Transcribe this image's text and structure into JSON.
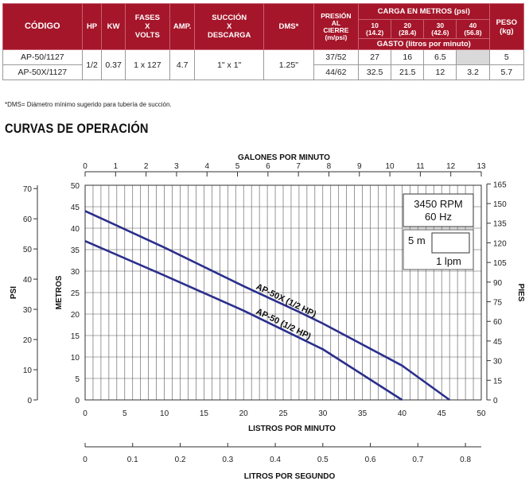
{
  "table": {
    "headers": {
      "codigo": "CÓDIGO",
      "hp": "HP",
      "kw": "KW",
      "fases": [
        "FASES",
        "X",
        "VOLTS"
      ],
      "amp": "AMP.",
      "succion": [
        "SUCCIÓN",
        "X",
        "DESCARGA"
      ],
      "dms": "DMS*",
      "presion": [
        "PRESIÓN",
        "AL",
        "CIERRE",
        "(m/psi)"
      ],
      "carga": "CARGA EN METROS (psi)",
      "carga_cols": [
        [
          "10",
          "(14.2)"
        ],
        [
          "20",
          "(28.4)"
        ],
        [
          "30",
          "(42.6)"
        ],
        [
          "40",
          "(56.8)"
        ]
      ],
      "gasto": "GASTO (litros por minuto)",
      "peso": [
        "PESO",
        "(kg)"
      ]
    },
    "shared": {
      "hp": "1/2",
      "kw": "0.37",
      "fases": "1 x 127",
      "amp": "4.7",
      "succion": "1\" x 1\"",
      "dms": "1.25\""
    },
    "rows": [
      {
        "codigo": "AP-50/1127",
        "presion": "37/52",
        "gasto": [
          "27",
          "16",
          "6.5",
          ""
        ],
        "peso": "5"
      },
      {
        "codigo": "AP-50X/1127",
        "presion": "44/62",
        "gasto": [
          "32.5",
          "21.5",
          "12",
          "3.2"
        ],
        "peso": "5.7"
      }
    ],
    "footnote": "*DMS= Diámetro mínimo sugerido para tubería de succión."
  },
  "section_title": "CURVAS DE OPERACIÓN",
  "colors": {
    "header_bg": "#a5162a",
    "curve": "#2b2f8c",
    "grid": "#555555",
    "grey_cell": "#d9d9d9"
  },
  "chart_data": {
    "type": "line",
    "x_primary": {
      "label": "LISTROS POR MINUTO",
      "range": [
        0,
        50
      ],
      "ticks": [
        0,
        5,
        10,
        15,
        20,
        25,
        30,
        35,
        40,
        45,
        50
      ]
    },
    "x_top": {
      "label": "GALONES POR MINUTO",
      "range": [
        0,
        13
      ],
      "ticks": [
        0,
        1,
        2,
        3,
        4,
        5,
        6,
        7,
        8,
        9,
        10,
        11,
        12,
        13
      ]
    },
    "x_bottom": {
      "label": "LITROS POR SEGUNDO",
      "range": [
        0,
        0.833
      ],
      "ticks": [
        "0",
        "0.1",
        "0.2",
        "0.3",
        "0.4",
        "0.5",
        "0.6",
        "0.7",
        "0.8"
      ]
    },
    "y_left": {
      "label": "METROS",
      "range": [
        0,
        50
      ],
      "ticks": [
        0,
        5,
        10,
        15,
        20,
        25,
        30,
        35,
        40,
        45,
        50
      ]
    },
    "y_psi": {
      "label": "PSI",
      "range": [
        0,
        71.1
      ],
      "ticks": [
        0,
        10,
        20,
        30,
        40,
        50,
        60,
        70
      ]
    },
    "y_right": {
      "label": "PIES",
      "range": [
        0,
        164
      ],
      "ticks": [
        0,
        15,
        30,
        45,
        60,
        75,
        90,
        105,
        120,
        135,
        150,
        165
      ]
    },
    "grid": true,
    "info_box": {
      "rpm": "3450 RPM",
      "hz": "60 Hz"
    },
    "scale_box": {
      "vertical": "5 m",
      "horizontal": "1 lpm"
    },
    "series": [
      {
        "name": "AP-50X (1/2 HP)",
        "x": [
          0,
          10,
          20,
          27,
          30,
          40,
          46
        ],
        "y": [
          44,
          35.5,
          26.5,
          20.5,
          17.8,
          8,
          0
        ]
      },
      {
        "name": "AP-50 (1/2 HP)",
        "x": [
          0,
          10,
          20,
          27,
          30,
          40
        ],
        "y": [
          37,
          29,
          20.8,
          14.5,
          11.8,
          0
        ]
      }
    ]
  }
}
